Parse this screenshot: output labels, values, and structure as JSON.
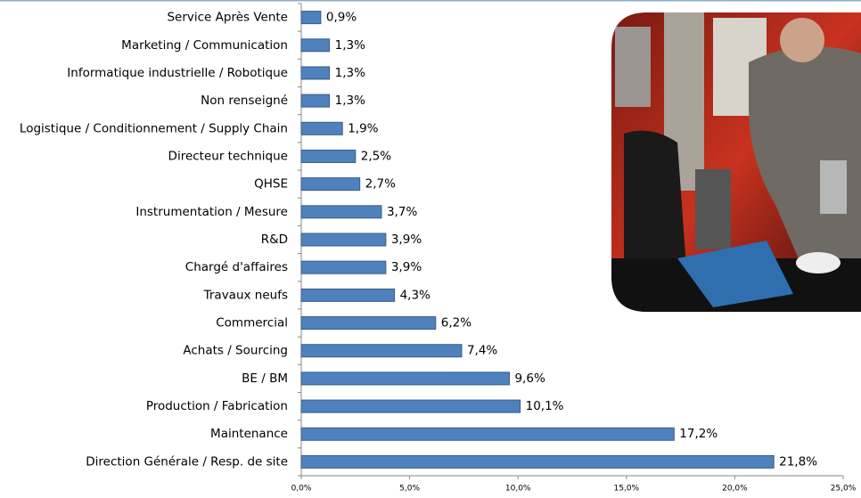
{
  "chart_data": {
    "type": "bar",
    "orientation": "horizontal",
    "categories": [
      "Service Après Vente",
      "Marketing / Communication",
      "Informatique industrielle / Robotique",
      "Non renseigné",
      "Logistique / Conditionnement / Supply Chain",
      "Directeur technique",
      "QHSE",
      "Instrumentation / Mesure",
      "R&D",
      "Chargé d'affaires",
      "Travaux neufs",
      "Commercial",
      "Achats / Sourcing",
      "BE / BM",
      "Production / Fabrication",
      "Maintenance",
      "Direction Générale / Resp. de site"
    ],
    "values": [
      0.9,
      1.3,
      1.3,
      1.3,
      1.9,
      2.5,
      2.7,
      3.7,
      3.9,
      3.9,
      4.3,
      6.2,
      7.4,
      9.6,
      10.1,
      17.2,
      21.8
    ],
    "value_labels": [
      "0,9%",
      "1,3%",
      "1,3%",
      "1,3%",
      "1,9%",
      "2,5%",
      "2,7%",
      "3,7%",
      "3,9%",
      "3,9%",
      "4,3%",
      "6,2%",
      "7,4%",
      "9,6%",
      "10,1%",
      "17,2%",
      "21,8%"
    ],
    "color": "#4f81bd",
    "xlim": [
      0,
      25
    ],
    "xticks": [
      {
        "value": 0,
        "label": "0,0%"
      },
      {
        "value": 5,
        "label": "5,0%"
      },
      {
        "value": 10,
        "label": "10,0%"
      },
      {
        "value": 15,
        "label": "15,0%"
      },
      {
        "value": 20,
        "label": "20,0%"
      },
      {
        "value": 25,
        "label": "25,0%"
      }
    ]
  }
}
